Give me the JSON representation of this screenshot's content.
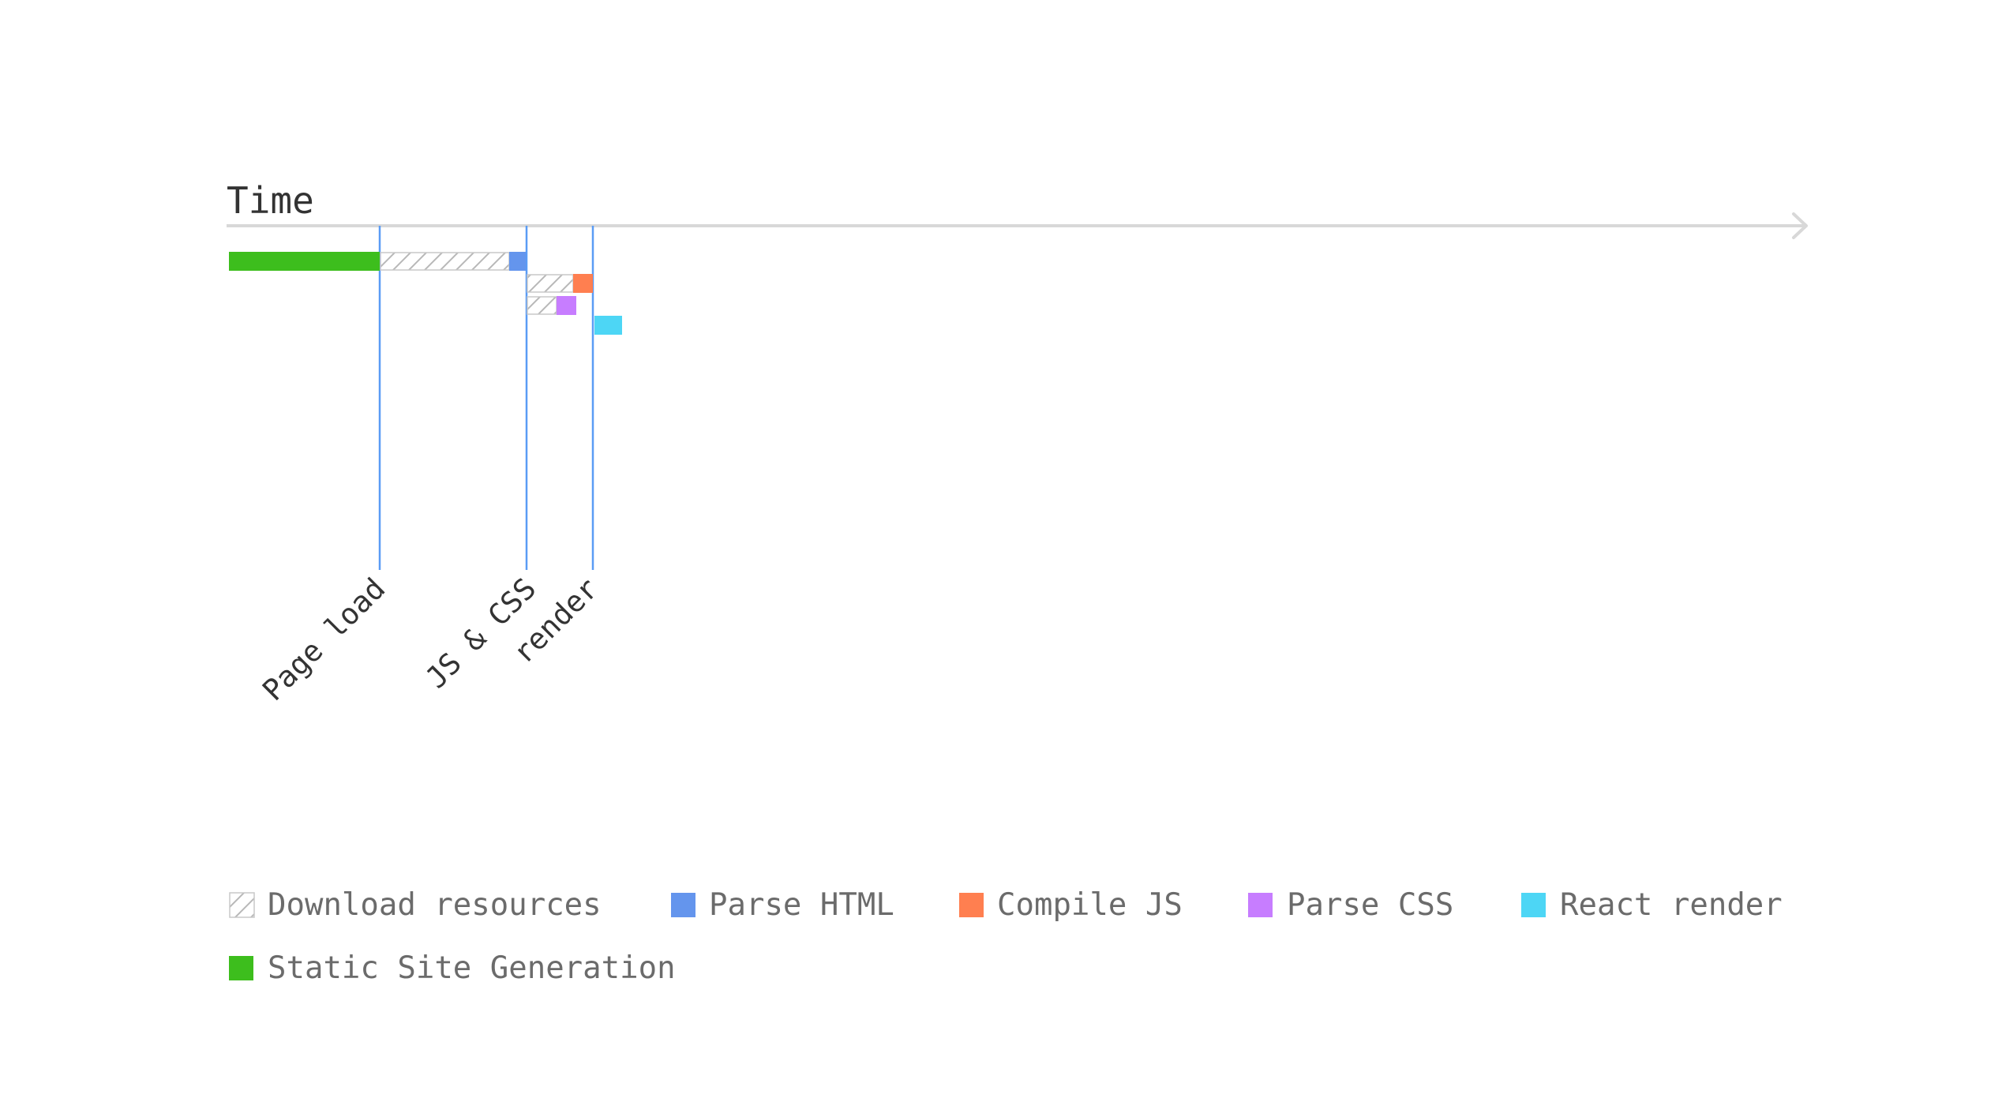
{
  "axis": {
    "title": "Time"
  },
  "colors": {
    "download_resources": "hatched-gray",
    "parse_html": "#6495ED",
    "compile_js": "#FF7F50",
    "parse_css": "#C77DFF",
    "react_render": "#4DD6F5",
    "static_site_generation": "#3DBE1D",
    "milestone_line": "#5A9CF5",
    "axis_line": "#D8D8D8"
  },
  "milestones": [
    {
      "id": "page-load",
      "label": "Page load"
    },
    {
      "id": "js-css",
      "label": "JS & CSS"
    },
    {
      "id": "render",
      "label": "render"
    }
  ],
  "legend": [
    {
      "id": "download-resources",
      "label": "Download resources",
      "swatch": "hatched"
    },
    {
      "id": "parse-html",
      "label": "Parse HTML",
      "swatch": "#6495ED"
    },
    {
      "id": "compile-js",
      "label": "Compile JS",
      "swatch": "#FF7F50"
    },
    {
      "id": "parse-css",
      "label": "Parse CSS",
      "swatch": "#C77DFF"
    },
    {
      "id": "react-render",
      "label": "React render",
      "swatch": "#4DD6F5"
    },
    {
      "id": "static-site-generation",
      "label": "Static Site Generation",
      "swatch": "#3DBE1D"
    }
  ]
}
